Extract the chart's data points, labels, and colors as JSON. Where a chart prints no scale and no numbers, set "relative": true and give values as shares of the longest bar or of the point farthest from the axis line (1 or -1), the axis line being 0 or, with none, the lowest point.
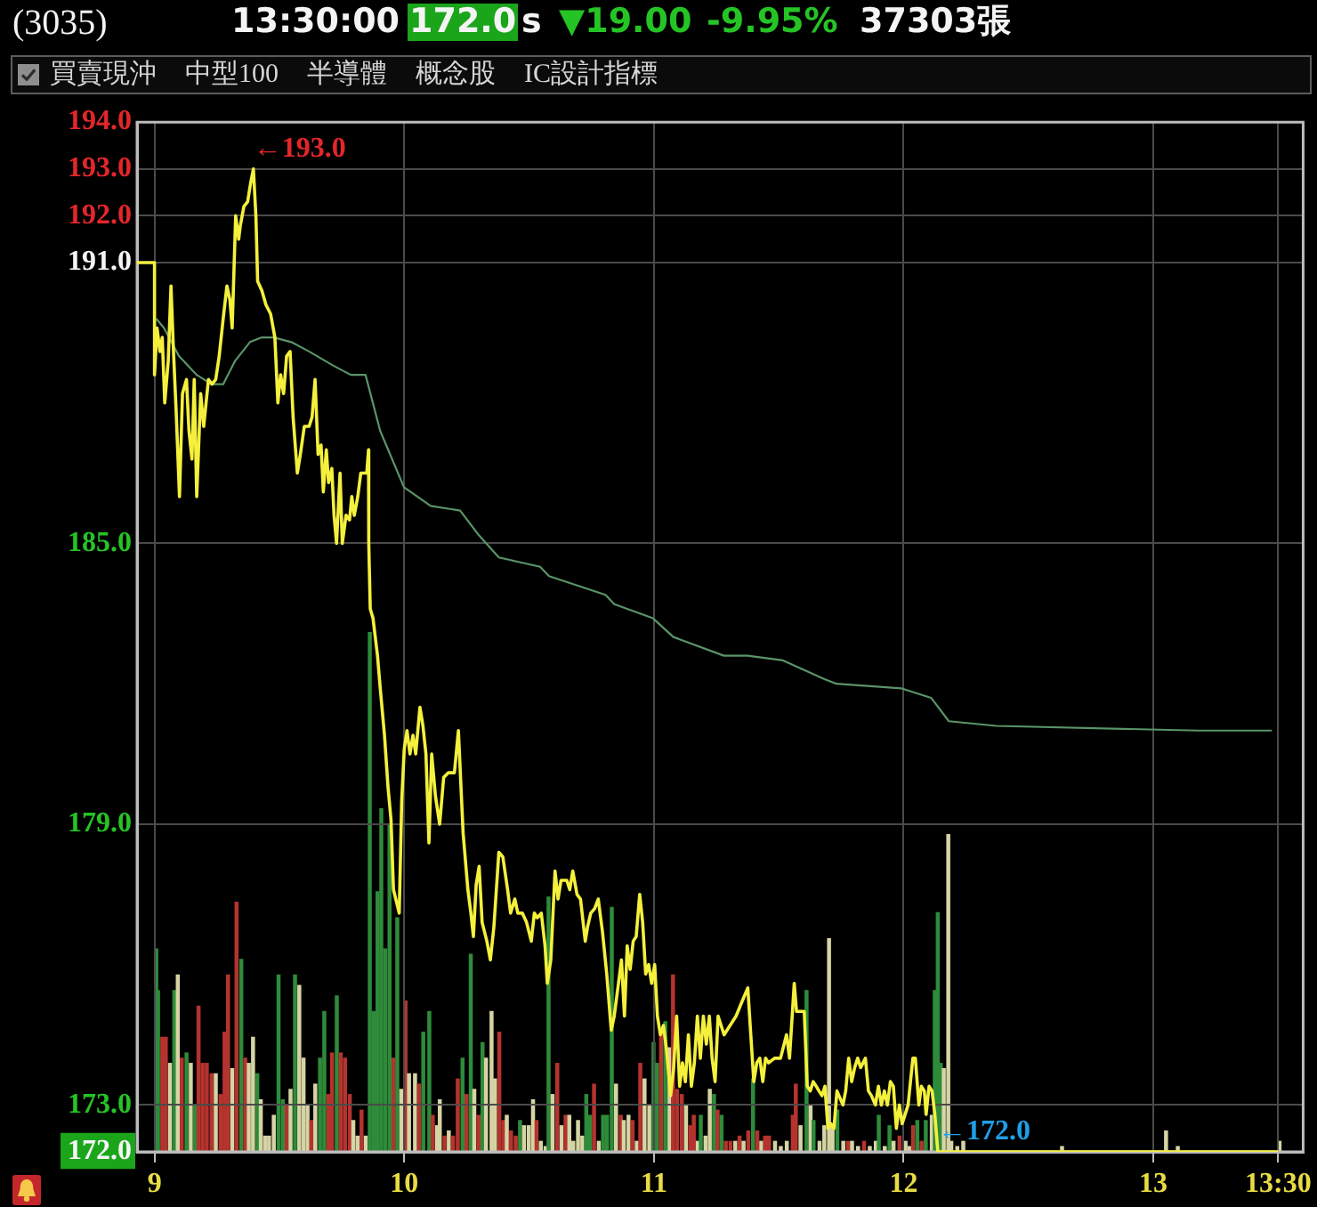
{
  "chart_data": [
    {
      "type": "line",
      "title": "(3035)",
      "annotations": [
        "13:30:00",
        "172.0",
        "s",
        "▼19.00",
        "-9.95%",
        "37303張",
        "買賣現沖",
        "中型100",
        "半導體",
        "概念股",
        "IC設計指標",
        {
          "text": "←193.0",
          "x": 9.396,
          "y": 193.0
        },
        {
          "text": "←172.0",
          "x": 12.137,
          "y": 172.0
        }
      ],
      "series": [
        {
          "color": "#f4f03c",
          "x": [
            8.93,
            9.0,
            9.0,
            9.01,
            9.022,
            9.031,
            9.041,
            9.055,
            9.066,
            9.076,
            9.086,
            9.1,
            9.112,
            9.128,
            9.138,
            9.15,
            9.159,
            9.169,
            9.185,
            9.197,
            9.216,
            9.23,
            9.245,
            9.259,
            9.275,
            9.29,
            9.302,
            9.311,
            9.325,
            9.337,
            9.344,
            9.358,
            9.373,
            9.385,
            9.396,
            9.406,
            9.413,
            9.43,
            9.446,
            9.465,
            9.482,
            9.494,
            9.505,
            9.517,
            9.529,
            9.543,
            9.555,
            9.572,
            9.584,
            9.6,
            9.619,
            9.631,
            9.643,
            9.655,
            9.667,
            9.676,
            9.688,
            9.697,
            9.71,
            9.719,
            9.729,
            9.743,
            9.752,
            9.767,
            9.781,
            9.79,
            9.8,
            9.814,
            9.826,
            9.85,
            9.857,
            9.858,
            9.864,
            9.875,
            9.893,
            9.904,
            9.921,
            9.935,
            9.947,
            9.957,
            9.98,
            9.99,
            10.0,
            10.011,
            10.023,
            10.035,
            10.046,
            10.063,
            10.075,
            10.087,
            10.099,
            10.11,
            10.125,
            10.142,
            10.158,
            10.177,
            10.201,
            10.217,
            10.229,
            10.236,
            10.255,
            10.267,
            10.277,
            10.288,
            10.3,
            10.312,
            10.331,
            10.345,
            10.359,
            10.379,
            10.395,
            10.414,
            10.426,
            10.443,
            10.455,
            10.473,
            10.49,
            10.509,
            10.521,
            10.533,
            10.549,
            10.564,
            10.573,
            10.587,
            10.604,
            10.616,
            10.628,
            10.651,
            10.663,
            10.675,
            10.692,
            10.706,
            10.725,
            10.734,
            10.747,
            10.763,
            10.777,
            10.794,
            10.811,
            10.829,
            10.841,
            10.858,
            10.87,
            10.882,
            10.893,
            10.905,
            10.917,
            10.929,
            10.943,
            10.955,
            10.967,
            10.979,
            10.991,
            11.003,
            11.014,
            11.026,
            11.038,
            11.05,
            11.067,
            11.079,
            11.091,
            11.103,
            11.114,
            11.126,
            11.138,
            11.15,
            11.162,
            11.174,
            11.186,
            11.198,
            11.21,
            11.222,
            11.233,
            11.245,
            11.257,
            11.281,
            11.305,
            11.329,
            11.352,
            11.376,
            11.388,
            11.4,
            11.412,
            11.424,
            11.436,
            11.447,
            11.459,
            11.483,
            11.507,
            11.531,
            11.543,
            11.562,
            11.571,
            11.602,
            11.614,
            11.626,
            11.638,
            11.65,
            11.661,
            11.673,
            11.685,
            11.697,
            11.709,
            11.721,
            11.733,
            11.757,
            11.768,
            11.78,
            11.792,
            11.804,
            11.816,
            11.828,
            11.847,
            11.859,
            11.871,
            11.887,
            11.899,
            11.911,
            11.923,
            11.935,
            11.947,
            11.959,
            11.971,
            11.983,
            11.994,
            12.018,
            12.037,
            12.047,
            12.061,
            12.071,
            12.083,
            12.09,
            12.102,
            12.114,
            12.125,
            12.137,
            13.5
          ],
          "values": [
            191.0,
            191.0,
            188.6,
            189.6,
            189.1,
            189.4,
            188.0,
            188.9,
            190.5,
            189.1,
            187.9,
            186.0,
            188.2,
            188.5,
            187.4,
            186.8,
            188.5,
            186.0,
            188.2,
            187.5,
            188.5,
            188.4,
            188.5,
            189.0,
            189.8,
            190.5,
            190.2,
            189.6,
            192.0,
            191.5,
            191.8,
            192.2,
            192.3,
            192.7,
            193.0,
            192.0,
            190.6,
            190.4,
            190.1,
            189.9,
            189.4,
            188.0,
            188.6,
            188.2,
            189.0,
            189.1,
            187.7,
            186.5,
            186.9,
            187.5,
            187.5,
            187.7,
            188.5,
            186.9,
            187.1,
            186.1,
            187.0,
            186.3,
            186.6,
            185.6,
            185.0,
            186.5,
            185.0,
            185.6,
            185.5,
            186.0,
            185.6,
            186.0,
            186.5,
            186.5,
            187.0,
            185.0,
            183.6,
            183.4,
            182.6,
            181.9,
            180.9,
            179.8,
            179.1,
            177.6,
            177.1,
            179.5,
            180.6,
            181.0,
            180.5,
            180.9,
            180.5,
            181.5,
            181.1,
            180.5,
            178.6,
            180.5,
            179.6,
            179.0,
            180.0,
            180.1,
            180.1,
            181.0,
            179.6,
            178.8,
            177.6,
            177.1,
            176.6,
            177.7,
            178.1,
            176.9,
            176.5,
            176.1,
            176.8,
            178.4,
            178.3,
            177.6,
            177.1,
            177.4,
            177.1,
            177.1,
            176.9,
            176.5,
            177.1,
            177.0,
            177.1,
            176.4,
            175.6,
            176.1,
            178.0,
            177.4,
            177.8,
            177.8,
            177.6,
            178.0,
            177.5,
            177.4,
            176.5,
            176.8,
            177.1,
            177.2,
            177.4,
            176.7,
            175.8,
            174.6,
            174.9,
            175.6,
            176.1,
            174.9,
            176.4,
            175.9,
            176.5,
            176.6,
            177.5,
            176.9,
            175.8,
            176.0,
            175.6,
            176.0,
            174.9,
            174.5,
            174.7,
            174.2,
            173.2,
            173.8,
            174.9,
            173.4,
            173.9,
            173.5,
            174.5,
            173.4,
            173.9,
            174.9,
            174.0,
            174.9,
            174.3,
            174.9,
            174.0,
            173.5,
            174.9,
            174.5,
            174.7,
            174.9,
            175.2,
            175.5,
            174.5,
            173.5,
            173.9,
            174.0,
            173.5,
            174.0,
            173.9,
            174.0,
            174.0,
            174.5,
            174.0,
            175.6,
            175.0,
            175.0,
            173.4,
            173.3,
            173.5,
            173.4,
            173.3,
            173.2,
            173.4,
            172.5,
            172.6,
            172.5,
            173.3,
            173.0,
            173.3,
            174.0,
            173.5,
            173.8,
            174.0,
            173.8,
            174.0,
            173.3,
            173.2,
            173.0,
            173.4,
            173.0,
            173.3,
            173.0,
            173.5,
            173.4,
            172.5,
            173.0,
            172.6,
            173.0,
            174.0,
            174.0,
            173.0,
            173.4,
            173.3,
            172.8,
            173.4,
            173.3,
            172.8,
            172.0,
            172.0
          ]
        },
        {
          "color": "#5a9468",
          "x": [
            9.007,
            9.038,
            9.098,
            9.169,
            9.228,
            9.275,
            9.323,
            9.382,
            9.43,
            9.477,
            9.548,
            9.619,
            9.715,
            9.786,
            9.845,
            9.904,
            9.999,
            10.106,
            10.224,
            10.295,
            10.379,
            10.544,
            10.58,
            10.806,
            10.841,
            10.996,
            11.078,
            11.28,
            11.375,
            11.517,
            11.683,
            11.731,
            11.992,
            12.11,
            12.181,
            12.372,
            13.178,
            13.475
          ],
          "values": [
            189.8,
            189.6,
            189.0,
            188.6,
            188.4,
            188.4,
            188.9,
            189.3,
            189.4,
            189.4,
            189.3,
            189.1,
            188.8,
            188.6,
            188.6,
            187.4,
            186.2,
            185.8,
            185.7,
            185.2,
            184.7,
            184.5,
            184.3,
            183.9,
            183.7,
            183.4,
            183.0,
            182.6,
            182.6,
            182.5,
            182.1,
            182.0,
            181.9,
            181.7,
            181.2,
            181.1,
            181.0,
            181.0
          ]
        }
      ],
      "xlim": [
        8.93,
        13.6
      ],
      "xticks": [
        9,
        10,
        11,
        12,
        13,
        {
          "value": 13.5,
          "label": "13:30"
        }
      ],
      "ylim": [
        172,
        194
      ],
      "yticks": [
        {
          "value": 172,
          "label": "172.0"
        },
        {
          "value": 173,
          "label": "173.0"
        },
        {
          "value": 179,
          "label": "179.0"
        },
        {
          "value": 185,
          "label": "185.0"
        },
        {
          "value": 191,
          "label": "191.0"
        },
        {
          "value": 192,
          "label": "192.0"
        },
        {
          "value": 193,
          "label": "193.0"
        },
        {
          "value": 194,
          "label": "194.0"
        }
      ],
      "grid": true
    },
    {
      "type": "bar",
      "relative": true,
      "xlim": [
        8.93,
        13.6
      ],
      "tick_labels": false,
      "x": [
        9.007,
        9.014,
        9.031,
        9.045,
        9.062,
        9.079,
        9.093,
        9.109,
        9.128,
        9.145,
        9.162,
        9.176,
        9.192,
        9.209,
        9.228,
        9.245,
        9.264,
        9.28,
        9.294,
        9.311,
        9.328,
        9.347,
        9.363,
        9.377,
        9.394,
        9.411,
        9.425,
        9.442,
        9.458,
        9.477,
        9.496,
        9.513,
        9.529,
        9.544,
        9.562,
        9.579,
        9.596,
        9.612,
        9.627,
        9.643,
        9.662,
        9.679,
        9.695,
        9.71,
        9.729,
        9.745,
        9.762,
        9.781,
        9.795,
        9.812,
        9.828,
        9.845,
        9.861,
        9.876,
        9.892,
        9.907,
        9.923,
        9.94,
        9.956,
        9.971,
        9.987,
        10.004,
        10.018,
        10.042,
        10.058,
        10.075,
        10.099,
        10.113,
        10.13,
        10.141,
        10.16,
        10.177,
        10.194,
        10.213,
        10.232,
        10.248,
        10.265,
        10.279,
        10.296,
        10.312,
        10.326,
        10.348,
        10.362,
        10.379,
        10.395,
        10.409,
        10.426,
        10.445,
        10.462,
        10.478,
        10.497,
        10.514,
        10.528,
        10.545,
        10.564,
        10.576,
        10.592,
        10.611,
        10.628,
        10.644,
        10.659,
        10.675,
        10.694,
        10.711,
        10.727,
        10.742,
        10.758,
        10.777,
        10.794,
        10.81,
        10.829,
        10.846,
        10.865,
        10.877,
        10.896,
        10.912,
        10.929,
        10.943,
        10.96,
        10.979,
        10.996,
        11.01,
        11.026,
        11.043,
        11.06,
        11.074,
        11.09,
        11.109,
        11.126,
        11.143,
        11.157,
        11.173,
        11.185,
        11.204,
        11.221,
        11.238,
        11.252,
        11.268,
        11.285,
        11.304,
        11.323,
        11.34,
        11.356,
        11.375,
        11.394,
        11.411,
        11.427,
        11.442,
        11.458,
        11.482,
        11.505,
        11.529,
        11.553,
        11.565,
        11.584,
        11.608,
        11.624,
        11.636,
        11.66,
        11.679,
        11.698,
        11.712,
        11.731,
        11.755,
        11.774,
        11.79,
        11.814,
        11.838,
        11.861,
        11.885,
        11.897,
        11.921,
        11.94,
        11.956,
        11.98,
        12.004,
        12.02,
        12.034,
        12.051,
        12.068,
        12.085,
        12.109,
        12.121,
        12.133,
        12.145,
        12.157,
        12.175,
        12.187,
        12.211,
        12.235,
        12.63,
        13.046,
        13.093,
        13.5
      ],
      "values": [
        0.39,
        0.31,
        0.22,
        0.22,
        0.17,
        0.31,
        0.34,
        0.18,
        0.19,
        0.17,
        0.09,
        0.28,
        0.17,
        0.17,
        0.15,
        0.15,
        0.11,
        0.23,
        0.34,
        0.16,
        0.48,
        0.37,
        0.18,
        0.17,
        0.22,
        0.15,
        0.1,
        0.03,
        0.03,
        0.07,
        0.34,
        0.1,
        0.09,
        0.12,
        0.34,
        0.32,
        0.18,
        0.09,
        0.06,
        0.13,
        0.18,
        0.27,
        0.11,
        0.19,
        0.3,
        0.19,
        0.18,
        0.11,
        0.06,
        0.03,
        0.08,
        0.03,
        1,
        0.27,
        0.5,
        0.66,
        0.39,
        0.63,
        0.18,
        0.45,
        0.12,
        0.29,
        0.15,
        0.15,
        0.13,
        0.23,
        0.27,
        0.07,
        0.05,
        0.1,
        0.03,
        0.04,
        0.03,
        0.14,
        0.18,
        0.11,
        0.38,
        0.12,
        0.07,
        0.21,
        0.18,
        0.27,
        0.14,
        0.23,
        0.06,
        0.07,
        0.04,
        0.03,
        0.06,
        0.05,
        0.05,
        0.1,
        0.06,
        0.02,
        0.01,
        0.49,
        0.11,
        0.17,
        0.05,
        0.07,
        0.07,
        0.02,
        0.06,
        0.03,
        0.11,
        0.07,
        0.13,
        0.02,
        0.07,
        0.07,
        0.47,
        0.13,
        0.07,
        0.06,
        0.07,
        0.06,
        0.02,
        0.17,
        0.14,
        0.09,
        0.21,
        0.17,
        0.23,
        0.25,
        0.2,
        0.34,
        0.12,
        0.11,
        0.09,
        0.05,
        0.07,
        0.02,
        0.07,
        0.03,
        0.12,
        0.11,
        0.08,
        0.07,
        0.02,
        0.02,
        0.02,
        0.03,
        0.02,
        0.04,
        0.14,
        0.04,
        0.02,
        0.03,
        0.03,
        0.02,
        0.01,
        0.02,
        0.07,
        0.13,
        0.05,
        0.31,
        0.09,
        0.06,
        0.02,
        0.05,
        0.41,
        0.05,
        0.08,
        0.02,
        0.02,
        0.02,
        0.01,
        0.02,
        0.01,
        0.02,
        0.07,
        0.01,
        0.05,
        0.02,
        0.03,
        0.02,
        0.01,
        0.05,
        0.06,
        0.02,
        0.06,
        0.07,
        0.31,
        0.46,
        0.17,
        0.16,
        0.61,
        0.02,
        0.01,
        0.02,
        0.01,
        0.04,
        0.01,
        0.02
      ],
      "colors": [
        "#2e8b3a",
        "#2e8b3a",
        "#b5332e",
        "#b5332e",
        "#d6d4a4",
        "#2e8b3a",
        "#d6d4a4",
        "#b5332e",
        "#2e8b3a",
        "#d6d4a4",
        "#2e8b3a",
        "#b5332e",
        "#b5332e",
        "#b5332e",
        "#b5332e",
        "#d6d4a4",
        "#b5332e",
        "#b5332e",
        "#b5332e",
        "#d6d4a4",
        "#b5332e",
        "#2e8b3a",
        "#b5332e",
        "#d6d4a4",
        "#d6d4a4",
        "#2e8b3a",
        "#d6d4a4",
        "#d6d4a4",
        "#d6d4a4",
        "#d6d4a4",
        "#2e8b3a",
        "#2e8b3a",
        "#b5332e",
        "#d6d4a4",
        "#2e8b3a",
        "#d6d4a4",
        "#d6d4a4",
        "#d6d4a4",
        "#b5332e",
        "#d6d4a4",
        "#2e8b3a",
        "#2e8b3a",
        "#b5332e",
        "#b5332e",
        "#2e8b3a",
        "#b5332e",
        "#b5332e",
        "#b5332e",
        "#d6d4a4",
        "#d6d4a4",
        "#b5332e",
        "#d6d4a4",
        "#2e8b3a",
        "#2e8b3a",
        "#2e8b3a",
        "#2e8b3a",
        "#2e8b3a",
        "#2e8b3a",
        "#b5332e",
        "#2e8b3a",
        "#d6d4a4",
        "#b5332e",
        "#d6d4a4",
        "#d6d4a4",
        "#b5332e",
        "#2e8b3a",
        "#2e8b3a",
        "#b5332e",
        "#d6d4a4",
        "#d6d4a4",
        "#b5332e",
        "#d6d4a4",
        "#b5332e",
        "#b5332e",
        "#2e8b3a",
        "#b5332e",
        "#2e8b3a",
        "#d6d4a4",
        "#b5332e",
        "#2e8b3a",
        "#d6d4a4",
        "#d6d4a4",
        "#d6d4a4",
        "#b5332e",
        "#b5332e",
        "#d6d4a4",
        "#b5332e",
        "#b5332e",
        "#2e8b3a",
        "#d6d4a4",
        "#d6d4a4",
        "#d6d4a4",
        "#b5332e",
        "#d6d4a4",
        "#d6d4a4",
        "#2e8b3a",
        "#d6d4a4",
        "#b5332e",
        "#d6d4a4",
        "#b5332e",
        "#d6d4a4",
        "#d6d4a4",
        "#d6d4a4",
        "#d6d4a4",
        "#2e8b3a",
        "#2e8b3a",
        "#b5332e",
        "#d6d4a4",
        "#2e8b3a",
        "#2e8b3a",
        "#2e8b3a",
        "#d6d4a4",
        "#b5332e",
        "#d6d4a4",
        "#d6d4a4",
        "#b5332e",
        "#d6d4a4",
        "#b5332e",
        "#d6d4a4",
        "#d6d4a4",
        "#2e8b3a",
        "#2e8b3a",
        "#b5332e",
        "#2e8b3a",
        "#d6d4a4",
        "#b5332e",
        "#b5332e",
        "#b5332e",
        "#d6d4a4",
        "#b5332e",
        "#b5332e",
        "#d6d4a4",
        "#2e8b3a",
        "#d6d4a4",
        "#d6d4a4",
        "#2e8b3a",
        "#b5332e",
        "#2e8b3a",
        "#b5332e",
        "#b5332e",
        "#d6d4a4",
        "#b5332e",
        "#d6d4a4",
        "#b5332e",
        "#2e8b3a",
        "#b5332e",
        "#d6d4a4",
        "#b5332e",
        "#b5332e",
        "#d6d4a4",
        "#d6d4a4",
        "#d6d4a4",
        "#b5332e",
        "#b5332e",
        "#d6d4a4",
        "#2e8b3a",
        "#d6d4a4",
        "#2e8b3a",
        "#d6d4a4",
        "#d6d4a4",
        "#d6d4a4",
        "#d6d4a4",
        "#2e8b3a",
        "#d6d4a4",
        "#b5332e",
        "#d6d4a4",
        "#d6d4a4",
        "#b5332e",
        "#d6d4a4",
        "#d6d4a4",
        "#2e8b3a",
        "#d6d4a4",
        "#2e8b3a",
        "#d6d4a4",
        "#b5332e",
        "#d6d4a4",
        "#d6d4a4",
        "#b5332e",
        "#2e8b3a",
        "#b5332e",
        "#2e8b3a",
        "#d6d4a4",
        "#2e8b3a",
        "#2e8b3a",
        "#2e8b3a",
        "#d6d4a4",
        "#d6d4a4",
        "#d6d4a4",
        "#d6d4a4",
        "#d6d4a4",
        "#d6d4a4",
        "#d6d4a4",
        "#d6d4a4",
        "#d6d4a4"
      ]
    }
  ]
}
